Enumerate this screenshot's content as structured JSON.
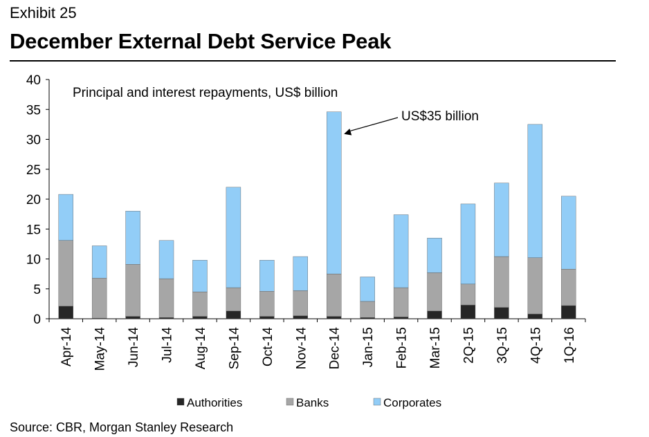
{
  "header": {
    "exhibit": "Exhibit 25",
    "title": "December External Debt Service Peak"
  },
  "source": "Source: CBR, Morgan Stanley Research",
  "colors": {
    "Authorities": "#262626",
    "Banks": "#a6a6a6",
    "Corporates": "#92cdf7"
  },
  "chart_data": {
    "type": "bar",
    "stacked": true,
    "subtitle": "Principal and interest repayments, US$ billion",
    "categories": [
      "Apr-14",
      "May-14",
      "Jun-14",
      "Jul-14",
      "Aug-14",
      "Sep-14",
      "Oct-14",
      "Nov-14",
      "Dec-14",
      "Jan-15",
      "Feb-15",
      "Mar-15",
      "2Q-15",
      "3Q-15",
      "4Q-15",
      "1Q-16"
    ],
    "series": [
      {
        "name": "Authorities",
        "values": [
          2.1,
          0.1,
          0.4,
          0.2,
          0.4,
          1.3,
          0.4,
          0.5,
          0.4,
          0.2,
          0.3,
          1.3,
          2.3,
          1.9,
          0.8,
          2.2
        ]
      },
      {
        "name": "Banks",
        "values": [
          11.0,
          6.7,
          8.7,
          6.5,
          4.1,
          3.9,
          4.2,
          4.2,
          7.1,
          2.7,
          4.9,
          6.4,
          3.5,
          8.5,
          9.4,
          6.1
        ]
      },
      {
        "name": "Corporates",
        "values": [
          7.7,
          5.4,
          8.9,
          6.4,
          5.3,
          16.8,
          5.2,
          5.7,
          27.1,
          4.1,
          12.2,
          5.8,
          13.4,
          12.3,
          22.3,
          12.2
        ]
      }
    ],
    "ylim": [
      0,
      40
    ],
    "yticks": [
      0,
      5,
      10,
      15,
      20,
      25,
      30,
      35,
      40
    ],
    "legend_position": "bottom",
    "annotation": {
      "text": "US$35 billion",
      "target_category": "Dec-14"
    }
  }
}
